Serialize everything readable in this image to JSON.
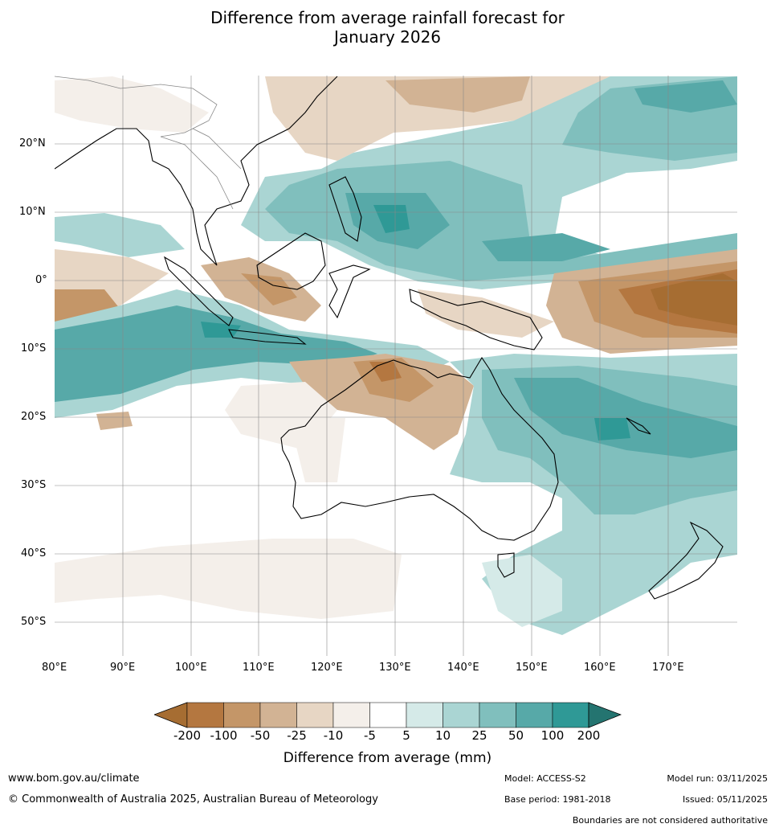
{
  "title": {
    "line1": "Difference from average rainfall forecast for",
    "line2": "January 2026"
  },
  "axes": {
    "lat_labels": [
      "20°N",
      "10°N",
      "0°",
      "10°S",
      "20°S",
      "30°S",
      "40°S",
      "50°S"
    ],
    "lon_labels": [
      "80°E",
      "90°E",
      "100°E",
      "110°E",
      "120°E",
      "130°E",
      "140°E",
      "150°E",
      "160°E",
      "170°E"
    ]
  },
  "colorbar": {
    "ticks": [
      "-200",
      "-100",
      "-50",
      "-25",
      "-10",
      "-5",
      "5",
      "10",
      "25",
      "50",
      "100",
      "200"
    ],
    "colors": [
      "#a66d32",
      "#b47740",
      "#c49668",
      "#d2b394",
      "#e7d6c4",
      "#f4efea",
      "#ffffff",
      "#d5eae8",
      "#aad5d3",
      "#80bfbd",
      "#57a9a8",
      "#2f9996",
      "#247470"
    ],
    "label": "Difference from average (mm)"
  },
  "footer": {
    "url": "www.bom.gov.au/climate",
    "copyright": "© Commonwealth of Australia 2025, Australian Bureau of Meteorology",
    "model": "Model: ACCESS-S2",
    "base_period": "Base period: 1981-2018",
    "model_run": "Model run: 03/11/2025",
    "issued": "Issued: 05/11/2025",
    "disclaimer": "Boundaries are not considered authoritative"
  }
}
